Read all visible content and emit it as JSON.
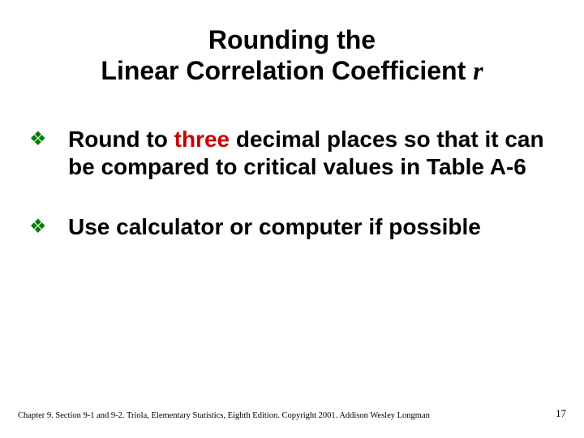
{
  "title": {
    "line1": "Rounding the",
    "line2_pre": "Linear Correlation Coefficient ",
    "line2_r": "r",
    "fontsize": 32,
    "color": "#000000"
  },
  "bullets": [
    {
      "pre": "Round to ",
      "highlight": "three",
      "post": " decimal places so that it can be compared to critical values in Table A-6"
    },
    {
      "pre": "Use calculator or computer if possible",
      "highlight": "",
      "post": ""
    }
  ],
  "bullet_marker": "❖",
  "bullet_marker_color": "#008000",
  "highlight_color": "#cc0000",
  "body_fontsize": 28,
  "footer": {
    "text": "Chapter 9.  Section 9-1 and 9-2.  Triola, Elementary Statistics, Eighth Edition. Copyright 2001.  Addison Wesley Longman",
    "fontsize": 10.5
  },
  "page_number": "17",
  "background_color": "#ffffff"
}
